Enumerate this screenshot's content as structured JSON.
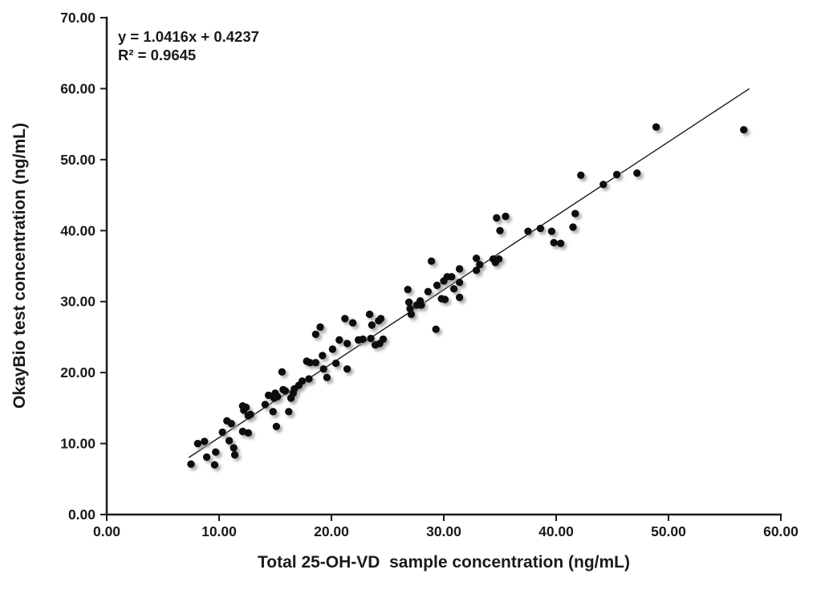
{
  "chart_data": {
    "type": "scatter",
    "title": "",
    "xlabel": "Total 25-OH-VD  sample concentration (ng/mL)",
    "ylabel": "OkayBio test concentration (ng/mL)",
    "xlim": [
      0,
      60
    ],
    "ylim": [
      0,
      70
    ],
    "grid": false,
    "legend": "none",
    "xticks": {
      "values": [
        0,
        10,
        20,
        30,
        40,
        50,
        60
      ],
      "labels": [
        "0.00",
        "10.00",
        "20.00",
        "30.00",
        "40.00",
        "50.00",
        "60.00"
      ]
    },
    "yticks": {
      "values": [
        0,
        10,
        20,
        30,
        40,
        50,
        60,
        70
      ],
      "labels": [
        "0.00",
        "10.00",
        "20.00",
        "30.00",
        "40.00",
        "50.00",
        "60.00",
        "70.00"
      ]
    },
    "annotation": {
      "equation": "y = 1.0416x + 0.4237",
      "r_squared": "R² = 0.9645"
    },
    "trendline": {
      "slope": 1.0416,
      "intercept": 0.4237,
      "x_start": 7.3,
      "x_end": 57.2,
      "color": "#1a1a1a"
    },
    "marker": {
      "color": "#0b0b0b",
      "radius": 4.7,
      "shadow_color": "#9a9a9a"
    },
    "axis_color": "#1a1a1a",
    "points": [
      [
        7.5,
        7.1
      ],
      [
        8.1,
        10.0
      ],
      [
        8.7,
        10.3
      ],
      [
        8.9,
        8.1
      ],
      [
        9.6,
        7.0
      ],
      [
        9.7,
        8.8
      ],
      [
        10.3,
        11.6
      ],
      [
        10.7,
        13.2
      ],
      [
        10.9,
        10.4
      ],
      [
        11.1,
        12.8
      ],
      [
        11.3,
        9.4
      ],
      [
        11.4,
        8.4
      ],
      [
        12.1,
        11.7
      ],
      [
        12.1,
        15.3
      ],
      [
        12.2,
        14.7
      ],
      [
        12.4,
        15.1
      ],
      [
        12.6,
        13.9
      ],
      [
        12.6,
        11.5
      ],
      [
        12.8,
        14.1
      ],
      [
        14.1,
        15.5
      ],
      [
        14.4,
        16.8
      ],
      [
        14.8,
        14.5
      ],
      [
        14.9,
        16.4
      ],
      [
        15.0,
        17.1
      ],
      [
        15.1,
        12.4
      ],
      [
        15.2,
        16.6
      ],
      [
        15.6,
        20.1
      ],
      [
        15.7,
        17.6
      ],
      [
        15.9,
        17.4
      ],
      [
        16.2,
        14.5
      ],
      [
        16.4,
        16.4
      ],
      [
        16.6,
        17.1
      ],
      [
        16.7,
        17.7
      ],
      [
        17.1,
        18.2
      ],
      [
        17.4,
        18.8
      ],
      [
        17.8,
        21.6
      ],
      [
        18.0,
        19.1
      ],
      [
        18.1,
        21.4
      ],
      [
        18.6,
        21.4
      ],
      [
        18.6,
        25.4
      ],
      [
        19.0,
        26.4
      ],
      [
        19.2,
        22.4
      ],
      [
        19.3,
        20.5
      ],
      [
        19.6,
        19.3
      ],
      [
        20.1,
        23.3
      ],
      [
        20.4,
        21.3
      ],
      [
        20.7,
        24.6
      ],
      [
        21.2,
        27.6
      ],
      [
        21.4,
        20.5
      ],
      [
        21.4,
        24.1
      ],
      [
        21.9,
        27.0
      ],
      [
        22.4,
        24.6
      ],
      [
        22.8,
        24.7
      ],
      [
        23.4,
        28.2
      ],
      [
        23.5,
        24.8
      ],
      [
        23.6,
        26.7
      ],
      [
        23.9,
        23.9
      ],
      [
        24.2,
        27.3
      ],
      [
        24.4,
        27.6
      ],
      [
        24.3,
        24.1
      ],
      [
        24.6,
        24.7
      ],
      [
        26.8,
        31.7
      ],
      [
        26.9,
        29.9
      ],
      [
        27.0,
        29.0
      ],
      [
        27.1,
        28.2
      ],
      [
        27.6,
        29.5
      ],
      [
        27.9,
        30.1
      ],
      [
        28.0,
        29.5
      ],
      [
        28.6,
        31.4
      ],
      [
        28.9,
        35.7
      ],
      [
        29.3,
        26.1
      ],
      [
        29.4,
        32.3
      ],
      [
        29.8,
        30.4
      ],
      [
        30.1,
        30.3
      ],
      [
        30.0,
        32.9
      ],
      [
        30.3,
        33.5
      ],
      [
        30.7,
        33.5
      ],
      [
        30.9,
        31.8
      ],
      [
        31.4,
        32.7
      ],
      [
        31.4,
        30.6
      ],
      [
        31.4,
        34.6
      ],
      [
        32.9,
        36.1
      ],
      [
        32.9,
        34.4
      ],
      [
        33.2,
        35.2
      ],
      [
        34.4,
        36.0
      ],
      [
        34.6,
        35.5
      ],
      [
        34.9,
        36.0
      ],
      [
        34.7,
        41.8
      ],
      [
        35.0,
        40.0
      ],
      [
        35.5,
        42.0
      ],
      [
        37.5,
        39.9
      ],
      [
        38.6,
        40.3
      ],
      [
        39.6,
        39.9
      ],
      [
        39.8,
        38.3
      ],
      [
        40.4,
        38.2
      ],
      [
        41.5,
        40.5
      ],
      [
        41.7,
        42.4
      ],
      [
        42.2,
        47.8
      ],
      [
        44.2,
        46.5
      ],
      [
        45.4,
        47.9
      ],
      [
        47.2,
        48.1
      ],
      [
        48.9,
        54.6
      ],
      [
        56.7,
        54.2
      ]
    ]
  }
}
